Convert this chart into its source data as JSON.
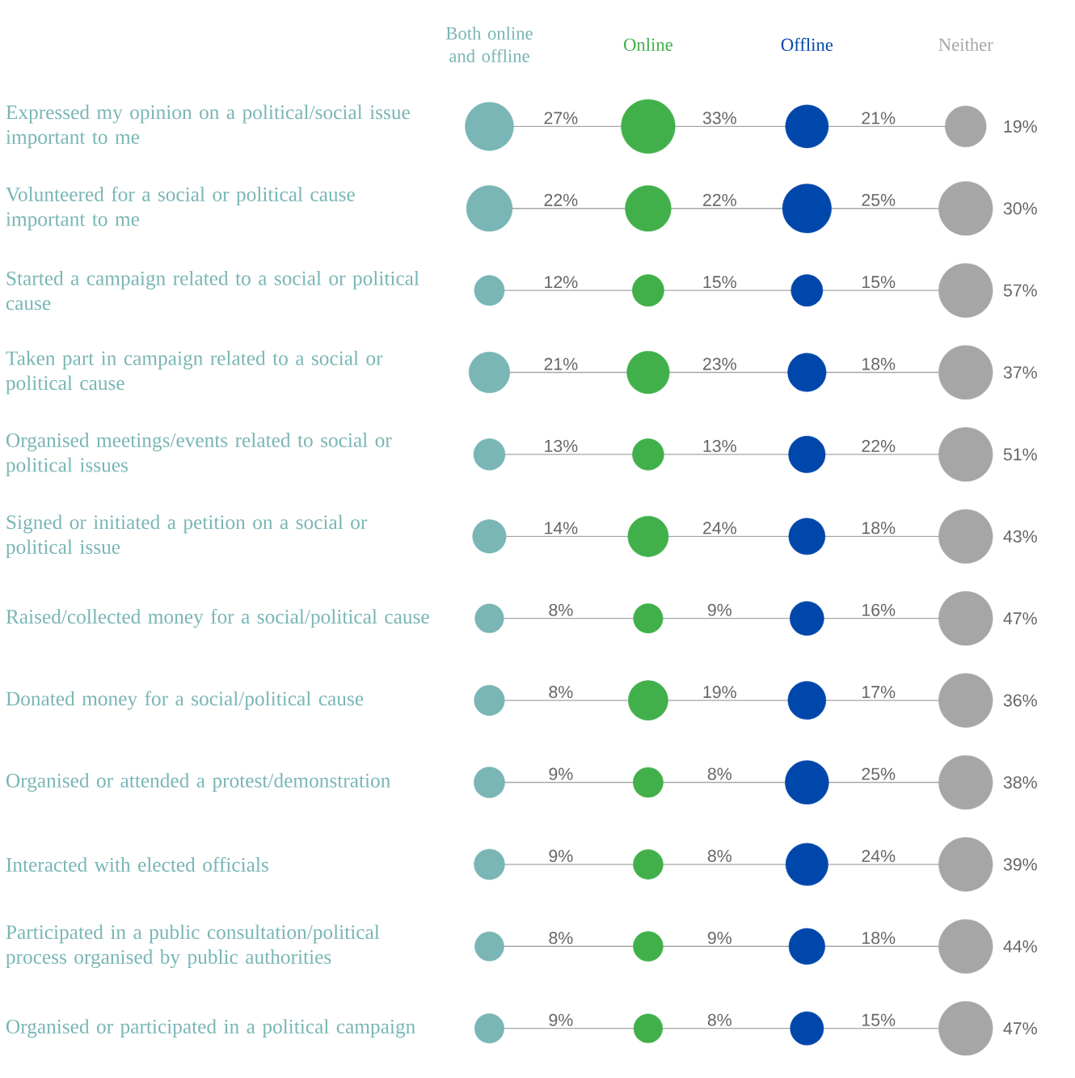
{
  "chart_data": {
    "type": "other",
    "categories": [
      "Expressed my opinion on a political/social issue important to me",
      "Volunteered for a social or political cause important to me",
      "Started a campaign related to a social or political cause",
      "Taken part in campaign related to a social or political cause",
      "Organised meetings/events related to social or political issues",
      "Signed or initiated a petition on a social or political issue",
      "Raised/collected money for a social/political cause",
      "Donated money for a social/political cause",
      "Organised or attended a protest/demonstration",
      "Interacted with elected officials",
      "Participated in a public consultation/political process organised by public authorities",
      "Organised or participated in a political campaign"
    ],
    "series": [
      {
        "name": "Both online and offline",
        "color": "#79b6b5",
        "values": [
          27,
          22,
          12,
          21,
          13,
          14,
          8,
          8,
          9,
          9,
          8,
          9
        ],
        "value_labels": [
          "27%",
          "22%",
          "12%",
          "21%",
          "13%",
          "14%",
          "8%",
          "8%",
          "9%",
          "9%",
          "8%",
          "9%"
        ]
      },
      {
        "name": "Online",
        "color": "#41b04a",
        "values": [
          33,
          22,
          15,
          23,
          13,
          24,
          9,
          19,
          8,
          8,
          9,
          8
        ],
        "value_labels": [
          "33%",
          "22%",
          "15%",
          "23%",
          "13%",
          "24%",
          "9%",
          "19%",
          "8%",
          "8%",
          "9%",
          "8%"
        ]
      },
      {
        "name": "Offline",
        "color": "#0047ab",
        "values": [
          21,
          25,
          15,
          18,
          22,
          18,
          16,
          17,
          25,
          24,
          18,
          15
        ],
        "value_labels": [
          "21%",
          "25%",
          "15%",
          "18%",
          "22%",
          "18%",
          "16%",
          "17%",
          "25%",
          "24%",
          "18%",
          "15%"
        ]
      },
      {
        "name": "Neither",
        "color": "#a6a6a6",
        "values": [
          19,
          30,
          57,
          37,
          51,
          43,
          47,
          36,
          38,
          39,
          44,
          47
        ],
        "value_labels": [
          "19%",
          "30%",
          "57%",
          "37%",
          "51%",
          "43%",
          "47%",
          "36%",
          "38%",
          "39%",
          "44%",
          "47%"
        ]
      }
    ]
  }
}
